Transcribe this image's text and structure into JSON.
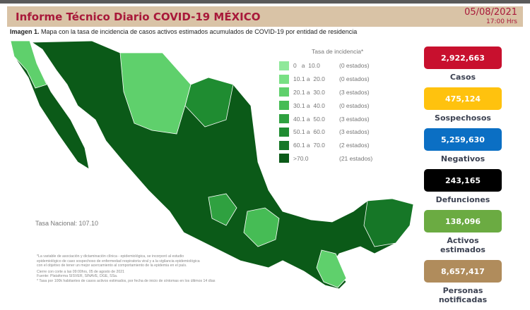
{
  "header": {
    "title": "Informe Técnico Diario COVID-19 MÉXICO",
    "date": "05/08/2021",
    "time": "17:00 Hrs"
  },
  "caption": {
    "label": "Imagen 1.",
    "text": " Mapa con la tasa de incidencia de casos activos estimados acumulados de COVID-19 por entidad de residencia"
  },
  "legend": {
    "title": "Tasa de incidencia*",
    "items": [
      {
        "range": "0   a  10.0",
        "count": "(0 estados)",
        "color": "#8fe89a"
      },
      {
        "range": "10.1 a  20.0",
        "count": "(0 estados)",
        "color": "#79e084"
      },
      {
        "range": "20.1 a  30.0",
        "count": "(3 estados)",
        "color": "#5fd06c"
      },
      {
        "range": "30.1 a  40.0",
        "count": "(0 estados)",
        "color": "#46bc55"
      },
      {
        "range": "40.1 a  50.0",
        "count": "(3 estados)",
        "color": "#2fa140"
      },
      {
        "range": "50.1 a  60.0",
        "count": "(3 estados)",
        "color": "#1f8c31"
      },
      {
        "range": "60.1 a  70.0",
        "count": "(2 estados)",
        "color": "#167727"
      },
      {
        "range": ">70.0",
        "count": "(21 estados)",
        "color": "#0b5a18"
      }
    ]
  },
  "tasa_nacional": "Tasa Nacional: 107.10",
  "notes": [
    "*La variable de asociación y dictaminación clínica - epidemiológica, se incorporó al estudio",
    "epidemiológico de caso sospechoso de enfermedad respiratoria viral y a la vigilancia epidemiológica",
    "con el objetivo de tener un mejor acercamiento al comportamiento de la epidemia en el país.",
    "Cierre con corte a las 09:00hrs, 05 de agosto de 2021",
    "Fuente: Plataforma SISVER, SINAVE, DGE, SSa.",
    "* Tasa por 100k habitantes de casos activos estimados, por fecha de inicio de síntomas en los últimos 14 días"
  ],
  "stats": [
    {
      "value": "2,922,663",
      "label": "Casos",
      "color": "#c8102e"
    },
    {
      "value": "475,124",
      "label": "Sospechosos",
      "color": "#ffc20e"
    },
    {
      "value": "5,259,630",
      "label": "Negativos",
      "color": "#0b6fc4"
    },
    {
      "value": "243,165",
      "label": "Defunciones",
      "color": "#000000"
    },
    {
      "value": "138,096",
      "label": "Activos estimados",
      "color": "#6bab42"
    },
    {
      "value": "8,657,417",
      "label": "Personas notificadas",
      "color": "#b08c5c"
    }
  ]
}
